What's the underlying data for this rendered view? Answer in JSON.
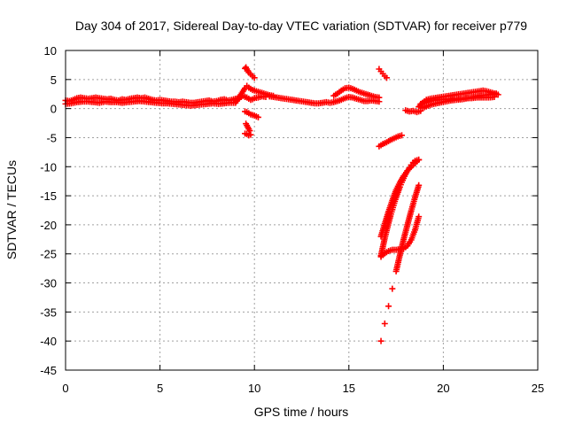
{
  "chart_data": {
    "type": "scatter",
    "title": "Day 304 of 2017, Sidereal Day-to-day VTEC variation (SDTVAR) for receiver p779",
    "xlabel": "GPS time / hours",
    "ylabel": "SDTVAR / TECUs",
    "xlim": [
      0,
      25
    ],
    "ylim": [
      -45,
      10
    ],
    "xticks": [
      0,
      5,
      10,
      15,
      20,
      25
    ],
    "yticks": [
      10,
      5,
      0,
      -5,
      -10,
      -15,
      -20,
      -25,
      -30,
      -35,
      -40,
      -45
    ],
    "grid": true,
    "marker": "plus",
    "color": "#ff0000",
    "series": [
      {
        "x": [
          0.0,
          0.2,
          0.4,
          0.6,
          0.8,
          1.0,
          1.2,
          1.4,
          1.6,
          1.8,
          2.0,
          2.2,
          2.4,
          2.6,
          2.8,
          3.0,
          3.2,
          3.4,
          3.6,
          3.8,
          4.0,
          4.2,
          4.4,
          4.6,
          4.8,
          5.0,
          5.2,
          5.4,
          5.6,
          5.8,
          6.0,
          6.2,
          6.4,
          6.6,
          6.8,
          7.0,
          7.2,
          7.4,
          7.6,
          7.8,
          8.0,
          8.2,
          8.4,
          8.6,
          8.8,
          9.0,
          9.2,
          9.4,
          0.0,
          0.3,
          0.6,
          0.9,
          1.2,
          1.5,
          1.8,
          2.1,
          2.4,
          2.7,
          3.0,
          3.3,
          3.6,
          3.9,
          4.2,
          4.5,
          4.8,
          5.1,
          5.4,
          5.7,
          6.0,
          6.3,
          6.6,
          6.9,
          7.2,
          7.5,
          7.8,
          8.1,
          8.4,
          8.7,
          9.0,
          9.5,
          9.6,
          9.7,
          9.8,
          9.9,
          10.0,
          10.2,
          10.4,
          10.6,
          10.8,
          11.0,
          9.5,
          9.6,
          9.7,
          9.8,
          9.9,
          10.0,
          10.2,
          10.4,
          10.6,
          9.5,
          9.55,
          9.6,
          9.65,
          9.7,
          9.8,
          9.9,
          10.0,
          9.5,
          9.6,
          9.7,
          9.8,
          9.9,
          10.0,
          10.2,
          9.55,
          9.6,
          9.65,
          9.7,
          9.75,
          9.5,
          9.6,
          9.7,
          9.8,
          10.8,
          11.0,
          11.2,
          11.4,
          11.6,
          11.8,
          12.0,
          12.2,
          12.4,
          12.6,
          12.8,
          13.0,
          13.2,
          13.4,
          13.6,
          13.8,
          14.0,
          14.2,
          14.4,
          14.6,
          14.8,
          15.0,
          15.2,
          15.4,
          15.6,
          15.8,
          16.0,
          16.2,
          16.4,
          16.6,
          14.2,
          14.4,
          14.6,
          14.8,
          15.0,
          15.2,
          15.4,
          15.6,
          15.8,
          16.0,
          16.2,
          16.4,
          16.6,
          16.6,
          16.7,
          16.8,
          16.9,
          17.0,
          16.6,
          16.8,
          17.0,
          17.2,
          17.4,
          17.6,
          17.8,
          16.7,
          16.9,
          17.1,
          17.3,
          17.5,
          17.7,
          17.9,
          18.1,
          18.3,
          18.5,
          18.7,
          16.7,
          16.9,
          17.1,
          17.3,
          17.5,
          17.7,
          17.9,
          18.1,
          18.3,
          18.5,
          18.7,
          16.7,
          16.9,
          17.1,
          17.3,
          17.5,
          17.7,
          17.9,
          18.1,
          18.3,
          18.5,
          18.7,
          16.7,
          16.8,
          16.9,
          17.0,
          17.1,
          17.2,
          17.3,
          17.4,
          17.5,
          17.6,
          17.7,
          17.8,
          17.9,
          18.0,
          18.1,
          18.2,
          18.3,
          18.4,
          18.5,
          18.6,
          18.7,
          18.0,
          18.2,
          18.4,
          18.6,
          18.8,
          18.7,
          18.9,
          19.1,
          19.3,
          19.5,
          19.7,
          19.9,
          20.1,
          20.3,
          20.5,
          20.7,
          20.9,
          21.1,
          21.3,
          21.5,
          21.7,
          21.9,
          22.1,
          22.3,
          22.5,
          22.7,
          22.9,
          18.8,
          19.1,
          19.4,
          19.7,
          20.0,
          20.3,
          20.6,
          20.9,
          21.2,
          21.5,
          21.8,
          22.1,
          22.4,
          22.7,
          18.9,
          19.2,
          19.5,
          19.8,
          20.1,
          20.4,
          20.7,
          21.0,
          21.3,
          21.6,
          21.9,
          22.2,
          22.5,
          22.8
        ],
        "y": [
          1.4,
          1.3,
          1.5,
          1.8,
          1.9,
          1.8,
          1.7,
          1.8,
          1.9,
          1.8,
          1.7,
          1.6,
          1.7,
          1.5,
          1.4,
          1.6,
          1.5,
          1.7,
          1.8,
          1.9,
          1.8,
          1.9,
          1.7,
          1.5,
          1.4,
          1.5,
          1.4,
          1.3,
          1.2,
          1.2,
          1.1,
          1.2,
          1.1,
          1.0,
          1.0,
          1.1,
          1.2,
          1.3,
          1.4,
          1.2,
          1.3,
          1.5,
          1.6,
          1.4,
          1.5,
          1.7,
          1.8,
          2.2,
          0.8,
          0.9,
          1.1,
          1.2,
          1.2,
          1.1,
          1.0,
          1.2,
          1.1,
          1.1,
          1.0,
          1.1,
          1.2,
          1.3,
          1.2,
          1.1,
          1.0,
          0.9,
          0.9,
          0.8,
          0.7,
          0.6,
          0.5,
          0.6,
          0.7,
          0.8,
          0.9,
          0.8,
          0.9,
          1.0,
          1.0,
          3.5,
          3.9,
          3.6,
          3.4,
          3.2,
          3.1,
          2.9,
          2.7,
          2.5,
          2.3,
          2.2,
          2.0,
          1.9,
          1.7,
          1.5,
          1.6,
          1.8,
          1.9,
          2.1,
          2.0,
          6.9,
          7.1,
          6.8,
          6.5,
          6.2,
          5.9,
          5.6,
          5.3,
          -0.5,
          -0.6,
          -0.8,
          -1.0,
          -1.1,
          -1.2,
          -1.5,
          -2.6,
          -2.9,
          -3.2,
          -3.5,
          -3.8,
          -4.3,
          -4.4,
          -4.6,
          -4.5,
          2.1,
          2.0,
          1.9,
          1.8,
          1.7,
          1.6,
          1.5,
          1.4,
          1.3,
          1.2,
          1.1,
          1.0,
          0.9,
          0.9,
          1.0,
          1.1,
          1.0,
          1.1,
          1.3,
          1.5,
          1.8,
          2.0,
          1.9,
          1.7,
          1.5,
          1.3,
          1.3,
          1.4,
          1.3,
          1.2,
          2.2,
          2.6,
          3.1,
          3.5,
          3.6,
          3.4,
          3.1,
          2.8,
          2.6,
          2.4,
          2.2,
          2.0,
          1.9,
          6.8,
          6.4,
          6.0,
          5.6,
          5.3,
          -6.5,
          -6.1,
          -5.8,
          -5.4,
          -5.1,
          -4.8,
          -4.6,
          -40.0,
          -37.0,
          -34.0,
          -31.0,
          -28.0,
          -25.2,
          -22.5,
          -20.0,
          -17.6,
          -15.3,
          -13.2,
          -22.0,
          -19.8,
          -17.7,
          -15.8,
          -14.0,
          -12.7,
          -11.6,
          -10.7,
          -10.0,
          -9.4,
          -8.8,
          -25.5,
          -24.9,
          -24.5,
          -24.3,
          -24.3,
          -24.2,
          -24.1,
          -23.6,
          -22.6,
          -20.9,
          -18.6,
          -25.3,
          -23.8,
          -22.3,
          -21.0,
          -19.7,
          -18.5,
          -17.4,
          -16.3,
          -15.3,
          -14.4,
          -13.5,
          -12.7,
          -12.0,
          -11.3,
          -10.7,
          -10.2,
          -9.7,
          -9.3,
          -9.0,
          -8.9,
          -8.8,
          -0.3,
          -0.5,
          -0.4,
          -0.6,
          -0.4,
          0.3,
          1.0,
          1.5,
          1.7,
          1.8,
          1.9,
          2.0,
          2.1,
          2.2,
          2.3,
          2.4,
          2.5,
          2.6,
          2.7,
          2.8,
          2.9,
          3.0,
          3.1,
          3.0,
          2.8,
          2.6,
          2.4,
          0.8,
          1.1,
          1.4,
          1.5,
          1.6,
          1.6,
          1.7,
          1.7,
          1.8,
          1.8,
          1.9,
          1.9,
          1.9,
          2.0,
          0.1,
          0.5,
          0.8,
          1.0,
          1.2,
          1.4,
          1.5,
          1.6,
          1.8,
          2.0,
          2.2,
          2.3,
          2.4,
          2.6
        ]
      }
    ]
  }
}
